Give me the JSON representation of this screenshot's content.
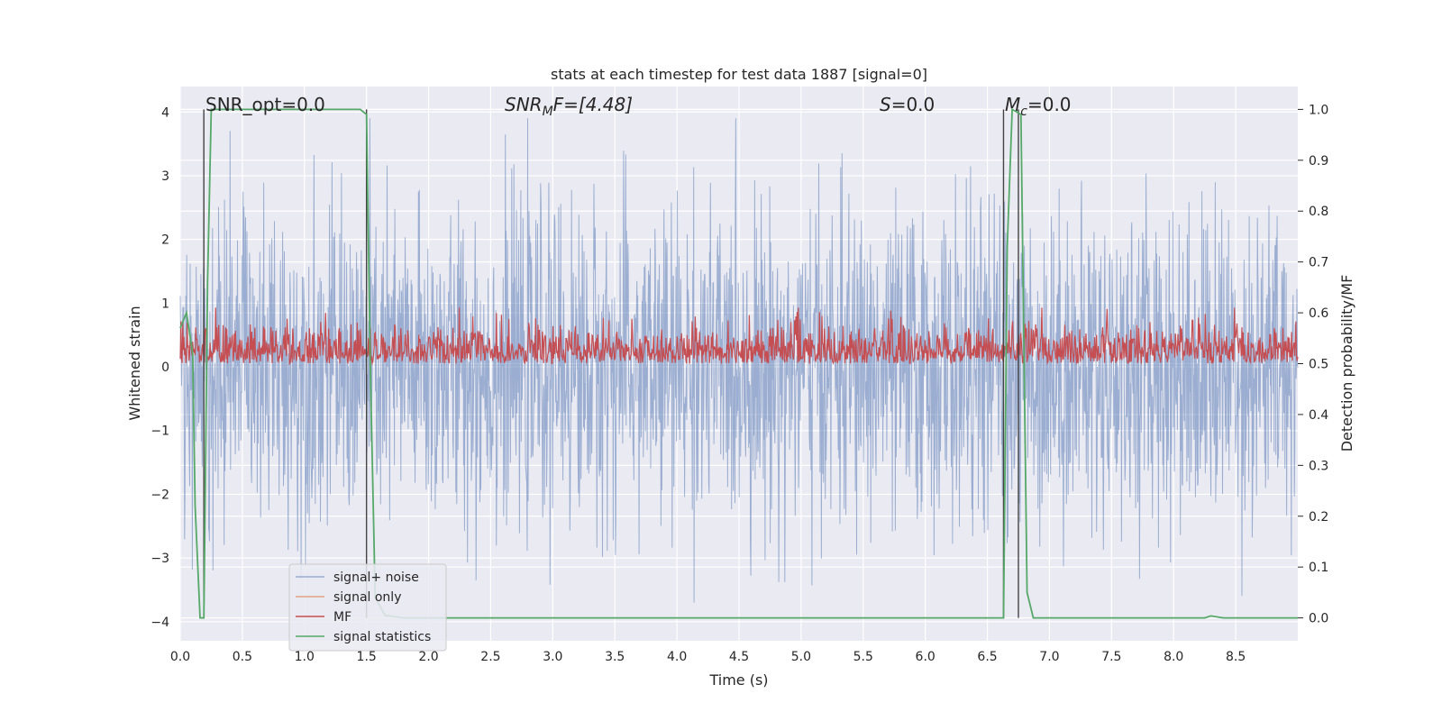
{
  "chart_data": {
    "type": "line",
    "title": "stats at each timestep for test data 1887 [signal=0]",
    "xlabel": "Time (s)",
    "ylabel_left": "Whitened strain",
    "ylabel_right": "Detection probability/MF",
    "xlim": [
      0,
      9.0
    ],
    "ylim_left": [
      -4.3,
      4.4
    ],
    "ylim_right": [
      -0.045,
      1.045
    ],
    "x_ticks": [
      "0.0",
      "0.5",
      "1.0",
      "1.5",
      "2.0",
      "2.5",
      "3.0",
      "3.5",
      "4.0",
      "4.5",
      "5.0",
      "5.5",
      "6.0",
      "6.5",
      "7.0",
      "7.5",
      "8.0",
      "8.5"
    ],
    "y_ticks_left": [
      "4",
      "3",
      "2",
      "1",
      "0",
      "−1",
      "−2",
      "−3",
      "−4"
    ],
    "y_ticks_right": [
      "1.0",
      "0.9",
      "0.8",
      "0.7",
      "0.6",
      "0.5",
      "0.4",
      "0.3",
      "0.2",
      "0.1",
      "0.0"
    ],
    "grid": true,
    "legend_position": "lower-left",
    "annotations": {
      "snr_opt": "SNR_opt=0.0",
      "snr_mf_prefix": "SNR",
      "snr_mf_sub": "M",
      "snr_mf_suffix": "F=[4.48]",
      "s_prefix": "S",
      "s_suffix": "=0.0",
      "mc_prefix": "M",
      "mc_sub": "c",
      "mc_suffix": "=0.0"
    },
    "vertical_lines_x": [
      0.19,
      1.5,
      6.63,
      6.75
    ],
    "series": [
      {
        "name": "signal+ noise",
        "color": "#4c72b0",
        "axis": "left",
        "kind": "noise",
        "typical_amplitude": 1.7,
        "peak_amplitude": 3.9
      },
      {
        "name": "signal only",
        "color": "#dd8452",
        "axis": "left",
        "kind": "flat",
        "values": []
      },
      {
        "name": "MF",
        "color": "#c44e52",
        "axis": "right",
        "kind": "noise",
        "mean": 0.52,
        "peak": 0.61
      },
      {
        "name": "signal statistics",
        "color": "#55a868",
        "axis": "right",
        "x": [
          0.0,
          0.05,
          0.1,
          0.12,
          0.16,
          0.19,
          0.22,
          0.25,
          0.5,
          1.0,
          1.45,
          1.5,
          1.53,
          1.57,
          1.65,
          1.8,
          6.55,
          6.63,
          6.66,
          6.7,
          6.77,
          6.82,
          6.87,
          7.5,
          8.0,
          8.25,
          8.3,
          8.4,
          9.0
        ],
        "y": [
          0.57,
          0.6,
          0.52,
          0.22,
          0.0,
          0.0,
          0.66,
          1.0,
          1.0,
          1.0,
          1.0,
          0.99,
          0.5,
          0.04,
          0.005,
          0.0,
          0.0,
          0.0,
          0.73,
          1.0,
          0.99,
          0.05,
          0.0,
          0.0,
          0.0,
          0.0,
          0.004,
          0.0,
          0.0
        ]
      }
    ]
  },
  "legend": {
    "items": [
      {
        "label": "signal+ noise",
        "color": "#4c72b0"
      },
      {
        "label": "signal only",
        "color": "#dd8452"
      },
      {
        "label": "MF",
        "color": "#c44e52"
      },
      {
        "label": "signal statistics",
        "color": "#55a868"
      }
    ]
  },
  "colors": {
    "plot_background": "#eaeaf2",
    "grid": "#ffffff",
    "vertical_marker": "#444444"
  }
}
